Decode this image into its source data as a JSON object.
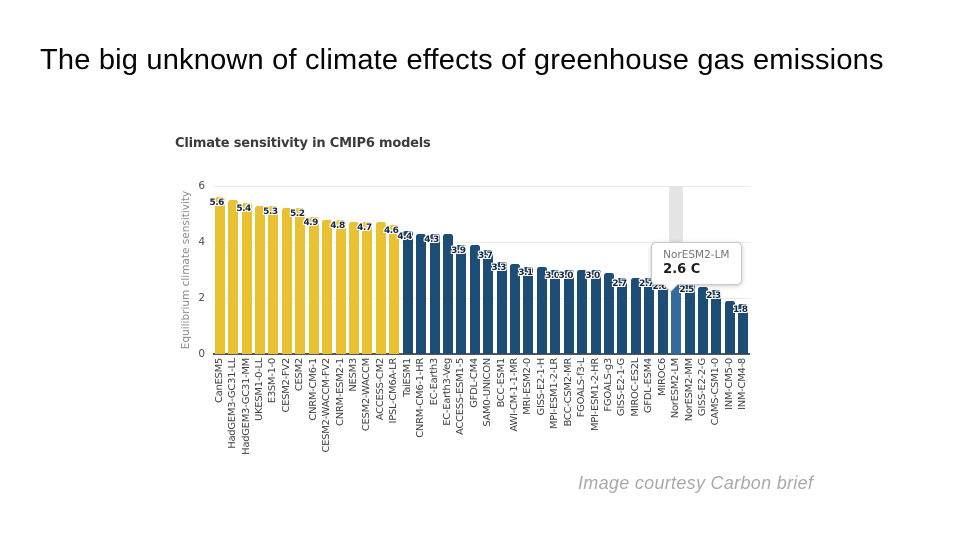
{
  "slide": {
    "title": "The big unknown of climate effects of greenhouse gas emissions",
    "credit": "Image courtesy Carbon brief"
  },
  "chart_data": {
    "type": "bar",
    "title": "Climate sensitivity in CMIP6 models",
    "xlabel": "",
    "ylabel": "Equilibrium climate sensitivity",
    "ylim": [
      0,
      6
    ],
    "yticks": [
      0,
      2,
      4,
      6
    ],
    "grid": "horizontal",
    "legend": "none",
    "categories": [
      "CanESM5",
      "HadGEM3-GC31-LL",
      "HadGEM3-GC31-MM",
      "UKESM1-0-LL",
      "E3SM-1-0",
      "CESM2-FV2",
      "CESM2",
      "CNRM-CM6-1",
      "CESM2-WACCM-FV2",
      "CNRM-ESM2-1",
      "NESM3",
      "CESM2-WACCM",
      "ACCESS-CM2",
      "IPSL-CM6A-LR",
      "TaiESM1",
      "CNRM-CM6-1-HR",
      "EC-Earth3",
      "EC-Earth3-Veg",
      "ACCESS-ESM1-5",
      "GFDL-CM4",
      "SAM0-UNICON",
      "BCC-ESM1",
      "AWI-CM-1-1-MR",
      "MRI-ESM2-0",
      "GISS-E2-1-H",
      "MPI-ESM1-2-LR",
      "BCC-CSM2-MR",
      "FGOALS-f3-L",
      "MPI-ESM1-2-HR",
      "FGOALS-g3",
      "GISS-E2-1-G",
      "MIROC-ES2L",
      "GFDL-ESM4",
      "MIROC6",
      "NorESM2-LM",
      "NorESM2-MM",
      "GISS-E2-2-G",
      "CAMS-CSM1-0",
      "INM-CM5-0",
      "INM-CM4-8"
    ],
    "values": [
      5.6,
      5.5,
      5.4,
      5.3,
      5.3,
      5.2,
      5.2,
      4.9,
      4.8,
      4.8,
      4.7,
      4.7,
      4.7,
      4.6,
      4.4,
      4.3,
      4.3,
      4.3,
      3.9,
      3.9,
      3.7,
      3.3,
      3.2,
      3.1,
      3.1,
      3.0,
      3.0,
      3.0,
      3.0,
      2.9,
      2.7,
      2.7,
      2.7,
      2.6,
      2.6,
      2.5,
      2.4,
      2.3,
      1.9,
      1.8
    ],
    "data_labels": [
      "5.6",
      null,
      "5.4",
      null,
      "5.3",
      null,
      "5.2",
      "4.9",
      null,
      "4.8",
      null,
      "4.7",
      null,
      "4.6",
      "4.4",
      null,
      "4.3",
      null,
      "3.9",
      null,
      "3.7",
      "3.3",
      null,
      "3.1",
      null,
      "3.0",
      "3.0",
      null,
      "3.0",
      null,
      "2.7",
      null,
      "2.7",
      "2.6",
      null,
      "2.5",
      null,
      "2.3",
      null,
      "1.8"
    ],
    "high_sensitivity_count": 14,
    "colors": {
      "high_bars": "#e9c233",
      "low_bars": "#1d4d75",
      "highlight_bar": "#356a9c",
      "hover_band": "#e5e5e5"
    },
    "highlight": {
      "index": 34,
      "tooltip_model": "NorESM2-LM",
      "tooltip_value": "2.6 C"
    }
  }
}
